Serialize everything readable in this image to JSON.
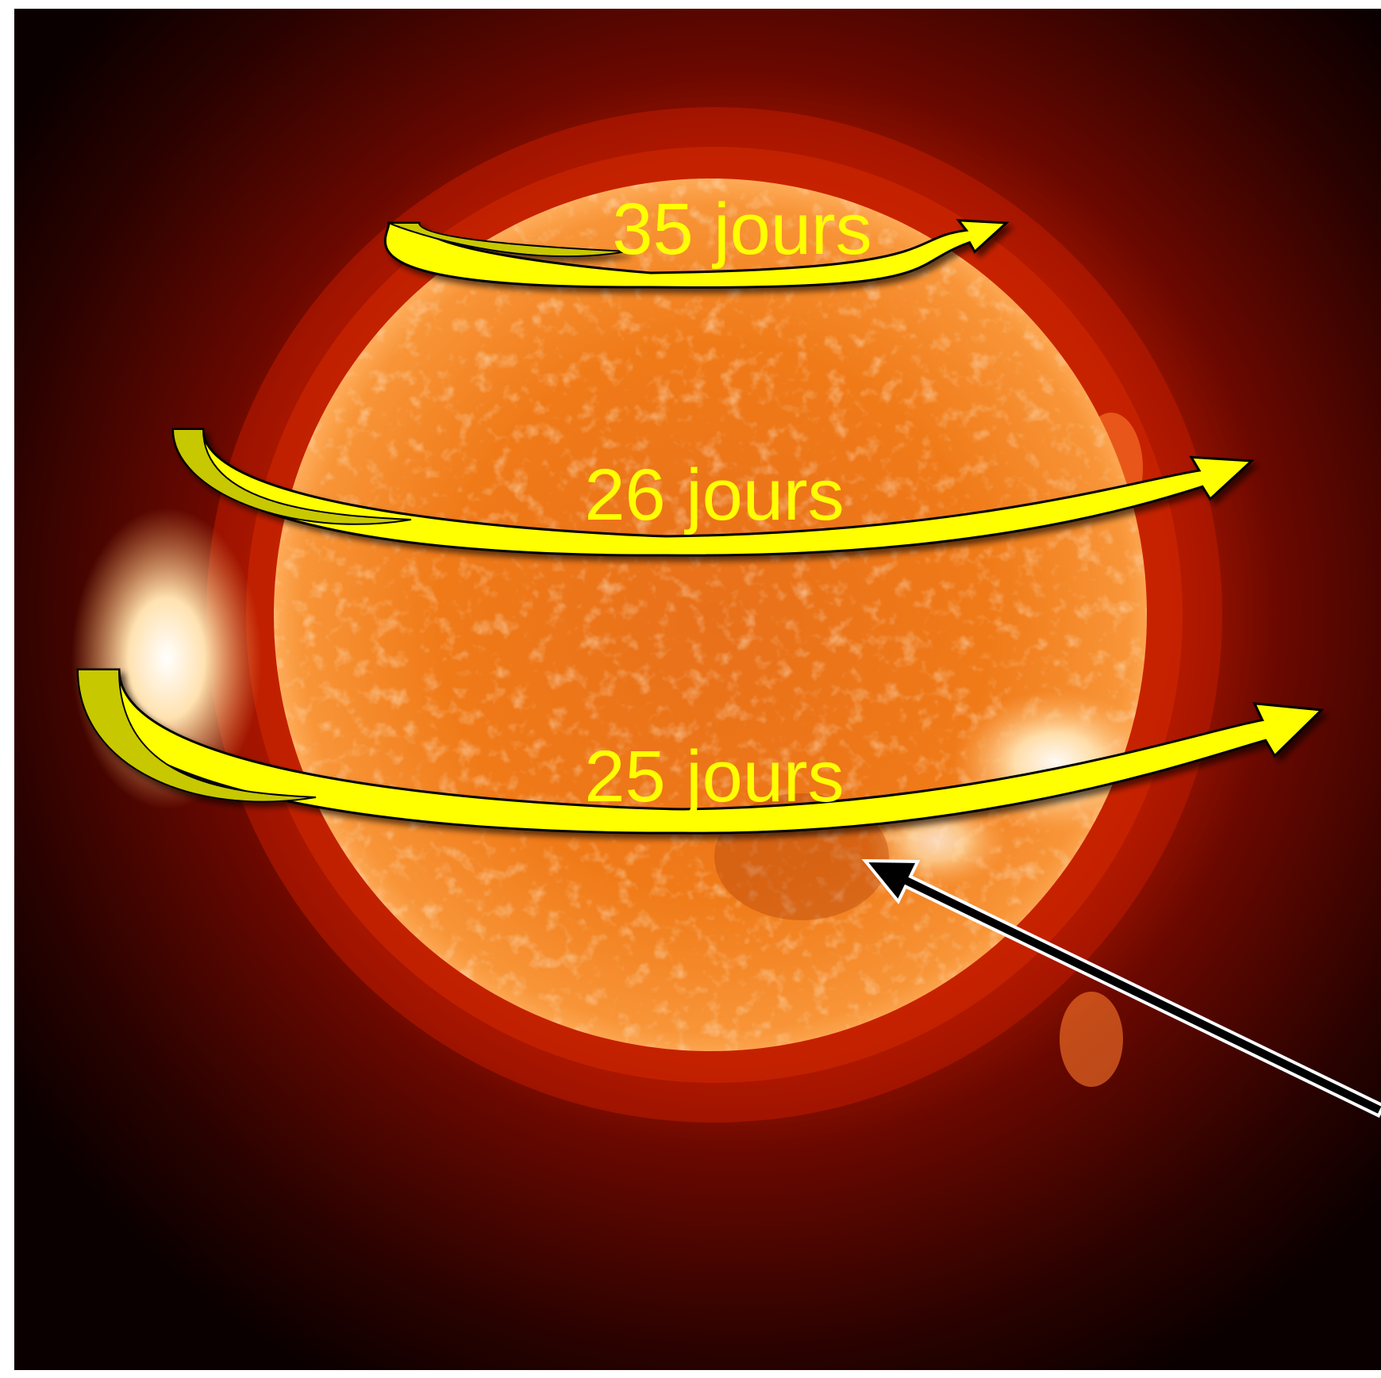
{
  "figure": {
    "subject": "sun-differential-rotation",
    "colors": {
      "background_frame": "#ffffff",
      "space_dark": "#0a0000",
      "corona_red": "#a81400",
      "sun_orange": "#f07a18",
      "sun_hot": "#ffd089",
      "arrow_fill": "#ffff00",
      "arrow_shade": "#c8c800",
      "arrow_outline": "#000000",
      "label_text": "#ffff00",
      "pointer_arrow": "#000000",
      "pointer_outline": "#ffffff"
    },
    "rotation_arrows": [
      {
        "id": "high-latitude",
        "label": "35 jours"
      },
      {
        "id": "mid-latitude",
        "label": "26 jours"
      },
      {
        "id": "equatorial",
        "label": "25 jours"
      }
    ],
    "pointer": {
      "icon": "pointer-arrow-icon"
    }
  }
}
